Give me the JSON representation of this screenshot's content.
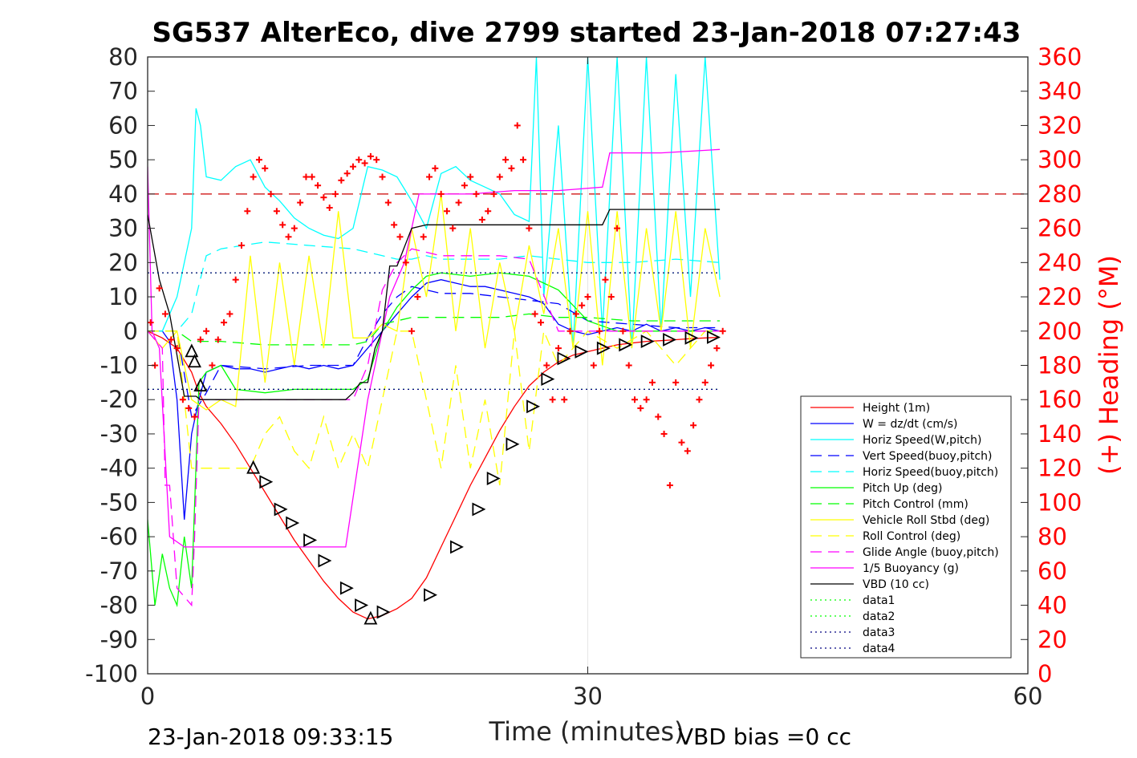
{
  "chart_data": {
    "type": "line",
    "title": "SG537 AlterEco, dive 2799 started 23-Jan-2018 07:27:43",
    "xlabel": "Time (minutes)",
    "ylabel_right": "(+) Heading (°M)",
    "xlim": [
      0,
      60
    ],
    "ylim": [
      -100,
      80
    ],
    "ylim_right": [
      0,
      360
    ],
    "x_ticks": [
      "0",
      "30",
      "60"
    ],
    "y_ticks": [
      "80",
      "70",
      "60",
      "50",
      "40",
      "30",
      "20",
      "10",
      "0",
      "-10",
      "-20",
      "-30",
      "-40",
      "-50",
      "-60",
      "-70",
      "-80",
      "-90",
      "-100"
    ],
    "y_right_ticks": [
      "360",
      "340",
      "320",
      "300",
      "280",
      "260",
      "240",
      "220",
      "200",
      "180",
      "160",
      "140",
      "120",
      "100",
      "80",
      "60",
      "40",
      "20",
      "0"
    ],
    "grid": "x-only",
    "legend_position": "lower-right",
    "footer_left": "23-Jan-2018 09:33:15",
    "footer_right": "VBD bias =0 cc",
    "colors": {
      "height": "#ff0000",
      "w": "#0000ff",
      "hspeed": "#00ffff",
      "pitch": "#00ff00",
      "roll": "#ffff00",
      "glide": "#ff00ff",
      "vbd": "#000000",
      "heading": "#ff0000",
      "data": "#000080"
    },
    "series": [
      {
        "name": "Height (1m)",
        "style": "solid",
        "color": "#ff0000",
        "x": [
          0,
          1,
          2,
          3,
          3.5,
          4,
          5,
          6,
          7,
          8,
          9,
          10,
          11,
          12,
          13,
          14,
          15,
          16,
          17,
          18,
          19,
          20,
          21,
          22,
          23,
          24,
          25,
          26,
          27,
          28,
          29,
          30,
          31,
          32,
          33,
          34,
          35,
          36,
          37,
          38,
          39
        ],
        "y": [
          0,
          -2,
          -5,
          -12,
          -18,
          -22,
          -27,
          -33,
          -40,
          -47,
          -54,
          -61,
          -67,
          -73,
          -78,
          -82,
          -84,
          -83,
          -81,
          -78,
          -72,
          -63,
          -54,
          -45,
          -37,
          -29,
          -22,
          -16,
          -12,
          -9,
          -7,
          -6,
          -5,
          -4,
          -3.5,
          -3,
          -2.8,
          -2.5,
          -2.2,
          -2,
          -1.8
        ]
      },
      {
        "name": "W = dz/dt (cm/s)",
        "style": "solid",
        "color": "#0000ff",
        "x": [
          0,
          1,
          1.5,
          2,
          2.5,
          3,
          3.5,
          4,
          5,
          6,
          7,
          8,
          9,
          10,
          11,
          12,
          13,
          14,
          15,
          16,
          17,
          18,
          19,
          20,
          21,
          22,
          23,
          24,
          25,
          26,
          27,
          28,
          29,
          30,
          31,
          32,
          33,
          34,
          35,
          36,
          37,
          38,
          39
        ],
        "y": [
          0,
          0,
          -3,
          -20,
          -55,
          -30,
          -20,
          -12,
          -10,
          -11,
          -11,
          -12,
          -11,
          -10,
          -11,
          -10,
          -11,
          -10,
          -5,
          0,
          5,
          10,
          14,
          15,
          14,
          13,
          13,
          12,
          11,
          10,
          8,
          2,
          0,
          -1,
          0,
          1,
          0,
          2,
          0,
          1,
          0,
          1,
          0
        ]
      },
      {
        "name": "Horiz Speed(W,pitch)",
        "style": "solid",
        "color": "#00ffff",
        "x": [
          0,
          1,
          2,
          3,
          3.3,
          3.6,
          4,
          5,
          6,
          7,
          8,
          9,
          10,
          11,
          12,
          13,
          14,
          15,
          16,
          17,
          18,
          19,
          20,
          21,
          22,
          23,
          24,
          25,
          26,
          26.5,
          27,
          28,
          29,
          30,
          31,
          32,
          33,
          34,
          35,
          36,
          37,
          38,
          39
        ],
        "y": [
          0,
          0,
          10,
          30,
          65,
          60,
          45,
          44,
          48,
          50,
          42,
          38,
          33,
          30,
          28,
          27,
          30,
          48,
          47,
          45,
          38,
          30,
          46,
          48,
          44,
          42,
          40,
          34,
          32,
          80,
          10,
          60,
          -5,
          80,
          0,
          80,
          -5,
          80,
          0,
          75,
          10,
          80,
          15
        ]
      },
      {
        "name": "Vert Speed(buoy,pitch)",
        "style": "dash",
        "color": "#0000ff",
        "x": [
          0,
          2,
          3,
          4,
          5,
          8,
          11,
          14,
          15,
          16,
          17,
          18,
          19,
          20,
          22,
          24,
          26,
          28,
          30,
          33,
          36,
          39
        ],
        "y": [
          0,
          0,
          -25,
          -18,
          -10,
          -11,
          -10,
          -10,
          -2,
          5,
          10,
          13,
          12,
          11,
          11,
          10,
          9,
          8,
          3,
          2,
          1,
          1
        ]
      },
      {
        "name": "Horiz Speed(buoy,pitch)",
        "style": "dash",
        "color": "#00ffff",
        "x": [
          0,
          2,
          3,
          4,
          5,
          8,
          11,
          14,
          15,
          16,
          17,
          18,
          19,
          20,
          22,
          24,
          26,
          28,
          30,
          33,
          36,
          39
        ],
        "y": [
          0,
          0,
          5,
          22,
          24,
          26,
          25,
          24,
          23,
          22,
          21,
          21,
          22,
          21,
          21,
          21,
          22,
          21,
          20,
          20,
          21,
          20
        ]
      },
      {
        "name": "Pitch Up (deg)",
        "style": "solid",
        "color": "#00ff00",
        "x": [
          0,
          0.5,
          1,
          1.5,
          2,
          2.5,
          3,
          3.5,
          4,
          5,
          6,
          8,
          10,
          12,
          14,
          15,
          16,
          17,
          18,
          19,
          20,
          22,
          24,
          26,
          28,
          30,
          32,
          34,
          36,
          38,
          39
        ],
        "y": [
          -55,
          -80,
          -65,
          -75,
          -80,
          -60,
          -75,
          -15,
          -12,
          -10,
          -17,
          -18,
          -17,
          -17,
          -17,
          -14,
          0,
          7,
          12,
          16,
          17,
          16,
          17,
          16,
          12,
          3,
          0,
          0,
          0,
          0,
          0
        ]
      },
      {
        "name": "Pitch Control (mm)",
        "style": "dash",
        "color": "#00ff00",
        "x": [
          0,
          2,
          3,
          4,
          5,
          8,
          11,
          14,
          15,
          16,
          17,
          18,
          19,
          20,
          22,
          24,
          26,
          28,
          30,
          33,
          36,
          39
        ],
        "y": [
          0,
          0,
          -3,
          -3,
          -3,
          -4,
          -4,
          -4,
          -3,
          2,
          3,
          4,
          4,
          4,
          4,
          4,
          5,
          4,
          4,
          3,
          3,
          3
        ]
      },
      {
        "name": "Vehicle Roll Stbd (deg)",
        "style": "solid",
        "color": "#ffff00",
        "x": [
          0,
          1,
          2,
          3,
          4,
          5,
          6,
          7,
          8,
          9,
          10,
          11,
          12,
          13,
          14,
          15,
          16,
          17,
          18,
          19,
          20,
          21,
          22,
          23,
          24,
          25,
          26,
          27,
          28,
          29,
          30,
          31,
          32,
          33,
          34,
          35,
          36,
          37,
          38,
          39
        ],
        "y": [
          0,
          -5,
          0,
          -20,
          -23,
          -20,
          -22,
          22,
          -15,
          20,
          -10,
          22,
          -5,
          35,
          -2,
          -2,
          2,
          0,
          30,
          10,
          40,
          0,
          30,
          -5,
          20,
          0,
          25,
          5,
          30,
          -5,
          35,
          -10,
          35,
          -5,
          30,
          0,
          35,
          -5,
          30,
          10
        ]
      },
      {
        "name": "Roll Control (deg)",
        "style": "dash",
        "color": "#ffff00",
        "x": [
          0,
          2,
          3,
          3.5,
          4,
          5,
          7,
          8,
          9,
          10,
          11,
          12,
          13,
          14,
          15,
          16,
          17,
          18,
          19,
          20,
          21,
          22,
          23,
          24,
          25,
          26,
          27,
          28,
          30,
          32,
          34,
          36,
          38,
          39
        ],
        "y": [
          0,
          0,
          -40,
          -40,
          -40,
          -40,
          -40,
          -30,
          -25,
          -35,
          -40,
          -25,
          -40,
          -30,
          -40,
          -20,
          0,
          0,
          -20,
          -40,
          -10,
          -40,
          -20,
          -45,
          0,
          -35,
          0,
          -10,
          0,
          -5,
          0,
          -10,
          0,
          0
        ]
      },
      {
        "name": "Glide Angle (buoy,pitch)",
        "style": "dash",
        "color": "#ff00ff",
        "x": [
          0,
          1,
          1.2,
          1.5,
          2,
          3,
          3.2,
          3.5,
          4,
          5,
          8,
          11,
          14,
          15,
          16,
          17,
          18,
          19,
          20,
          22,
          24,
          26,
          28,
          30,
          32,
          34,
          36,
          38,
          39
        ],
        "y": [
          0,
          -5,
          -45,
          -45,
          -75,
          -80,
          -60,
          -20,
          -20,
          -20,
          -20,
          -20,
          -20,
          -10,
          12,
          20,
          24,
          23,
          22,
          22,
          22,
          21,
          0,
          0,
          0,
          0,
          0,
          0,
          0
        ]
      },
      {
        "name": "1/5 Buoyancy (g)",
        "style": "solid",
        "color": "#ff00ff",
        "x": [
          0,
          0.3,
          0.8,
          1.5,
          2.5,
          3,
          3.5,
          3.7,
          5,
          8,
          11,
          13.5,
          15,
          16,
          16.5,
          17.5,
          18.5,
          20,
          22,
          25,
          28,
          31,
          31.5,
          32,
          35,
          39
        ],
        "y": [
          48,
          0,
          -5,
          -60,
          -63,
          -63,
          -63,
          -63,
          -63,
          -63,
          -63,
          -63,
          -20,
          0,
          10,
          20,
          40,
          40,
          40,
          41,
          41,
          42,
          52,
          52,
          52,
          53
        ]
      },
      {
        "name": "VBD (10 cc)",
        "style": "solid",
        "color": "#000000",
        "x": [
          0,
          0.8,
          1.5,
          2.5,
          3.3,
          3.6,
          5,
          8,
          11,
          13.5,
          14,
          14.5,
          15,
          15.5,
          16,
          16.5,
          17,
          18,
          19,
          20,
          22,
          25,
          28,
          31,
          31.5,
          35,
          39
        ],
        "y": [
          34,
          15,
          5,
          -19,
          -19,
          -20,
          -20,
          -20,
          -20,
          -20,
          -18,
          -15,
          -15,
          -5,
          0,
          19,
          19,
          30,
          31,
          31,
          31,
          31,
          31,
          31,
          35.5,
          35.5,
          35.5
        ]
      },
      {
        "name": "data1",
        "style": "dot",
        "color": "#00ff00",
        "x": [
          0,
          39
        ],
        "y": [
          -17,
          -17
        ]
      },
      {
        "name": "data2",
        "style": "dot",
        "color": "#00ff00",
        "x": [
          0,
          39
        ],
        "y": [
          17,
          17
        ]
      },
      {
        "name": "data3",
        "style": "dot",
        "color": "#000080",
        "x": [
          0,
          39
        ],
        "y": [
          -17,
          -17
        ]
      },
      {
        "name": "data4",
        "style": "dot",
        "color": "#000080",
        "x": [
          0,
          39
        ],
        "y": [
          17,
          17
        ]
      }
    ],
    "reference_line_heading": 280,
    "heading_points": {
      "x": [
        0.2,
        0.5,
        0.8,
        1.2,
        1.6,
        2.0,
        2.4,
        2.8,
        3.2,
        3.6,
        4.0,
        4.4,
        4.8,
        5.2,
        5.6,
        6.0,
        6.4,
        6.8,
        7.2,
        7.6,
        8.0,
        8.4,
        8.8,
        9.2,
        9.6,
        10.0,
        10.4,
        10.8,
        11.2,
        11.6,
        12.0,
        12.4,
        12.8,
        13.2,
        13.6,
        14.0,
        14.4,
        14.8,
        15.2,
        15.6,
        16.0,
        16.4,
        16.8,
        17.2,
        17.6,
        18.0,
        18.4,
        18.8,
        19.2,
        19.6,
        20.0,
        20.4,
        20.8,
        21.2,
        21.6,
        22.0,
        22.4,
        22.8,
        23.2,
        23.6,
        24.0,
        24.4,
        24.8,
        25.2,
        25.6,
        26.0,
        26.4,
        26.8,
        27.2,
        27.6,
        28.0,
        28.4,
        28.8,
        29.2,
        29.6,
        30.0,
        30.4,
        30.8,
        31.2,
        31.6,
        32.0,
        32.4,
        32.8,
        33.2,
        33.6,
        34.0,
        34.4,
        34.8,
        35.2,
        35.6,
        36.0,
        36.4,
        36.8,
        37.2,
        37.6,
        38.0,
        38.4,
        38.8,
        39.2
      ],
      "y": [
        205,
        180,
        225,
        210,
        195,
        190,
        160,
        155,
        150,
        195,
        200,
        180,
        195,
        205,
        210,
        230,
        250,
        270,
        290,
        300,
        295,
        280,
        270,
        262,
        255,
        260,
        275,
        290,
        290,
        285,
        278,
        272,
        280,
        288,
        292,
        296,
        300,
        298,
        302,
        300,
        290,
        275,
        262,
        255,
        240,
        200,
        220,
        255,
        290,
        295,
        280,
        270,
        260,
        275,
        285,
        290,
        280,
        265,
        270,
        280,
        290,
        300,
        295,
        320,
        300,
        260,
        210,
        205,
        180,
        160,
        190,
        160,
        200,
        210,
        215,
        220,
        180,
        200,
        230,
        220,
        260,
        200,
        180,
        160,
        155,
        160,
        170,
        150,
        140,
        110,
        170,
        135,
        130,
        145,
        160,
        170,
        180,
        190,
        200
      ]
    },
    "marker_points": {
      "up": [
        [
          3.0,
          -6
        ],
        [
          3.2,
          -9
        ],
        [
          3.6,
          -16
        ],
        [
          7.2,
          -40
        ],
        [
          15.2,
          -84
        ]
      ],
      "down": [
        [
          8.0,
          -44
        ],
        [
          9.0,
          -52
        ],
        [
          9.8,
          -56
        ],
        [
          11.0,
          -61
        ],
        [
          12.0,
          -67
        ],
        [
          13.5,
          -75
        ],
        [
          14.5,
          -80
        ],
        [
          16.0,
          -82
        ],
        [
          19.2,
          -77
        ],
        [
          21.0,
          -63
        ],
        [
          22.5,
          -52
        ],
        [
          23.5,
          -43
        ],
        [
          24.8,
          -33
        ],
        [
          26.2,
          -22
        ],
        [
          27.2,
          -14
        ],
        [
          28.3,
          -8
        ],
        [
          29.5,
          -6
        ],
        [
          31.0,
          -5
        ],
        [
          32.5,
          -4
        ],
        [
          34.0,
          -3
        ],
        [
          35.5,
          -2.5
        ],
        [
          37.0,
          -2
        ],
        [
          38.5,
          -1.8
        ]
      ]
    }
  }
}
